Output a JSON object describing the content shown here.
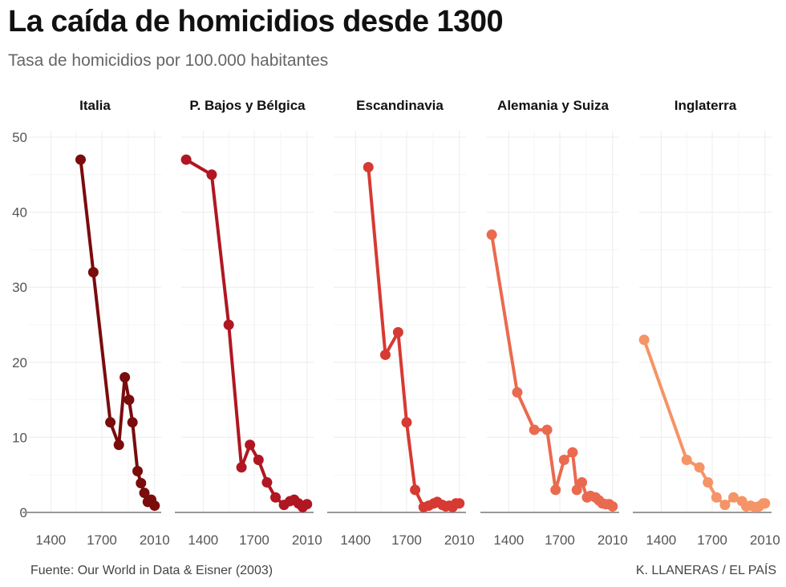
{
  "header": {
    "title": "La caída de homicidios desde 1300",
    "subtitle": "Tasa de homicidios por 100.000 habitantes"
  },
  "footer": {
    "source": "Fuente: Our World in Data & Eisner (2003)",
    "credit": "K. LLANERAS / EL PAÍS"
  },
  "chart_data": {
    "type": "line",
    "facets": true,
    "ylim": [
      0,
      50
    ],
    "yticks": [
      0,
      10,
      20,
      30,
      40,
      50
    ],
    "xlim": [
      1290,
      2030
    ],
    "xticks": [
      1400,
      1700,
      2010
    ],
    "grid": true,
    "legend": "none",
    "panels": [
      {
        "name": "Italia",
        "color": "#7a0c0c",
        "x": [
          1575,
          1650,
          1750,
          1800,
          1835,
          1860,
          1880,
          1910,
          1930,
          1950,
          1970,
          1990,
          2010
        ],
        "y": [
          47,
          32,
          12,
          9,
          18,
          15,
          12,
          5.5,
          3.9,
          2.6,
          1.4,
          1.7,
          0.9
        ]
      },
      {
        "name": "P. Bajos y Bélgica",
        "color": "#b01722",
        "x": [
          1300,
          1450,
          1550,
          1625,
          1675,
          1725,
          1775,
          1825,
          1875,
          1910,
          1935,
          1960,
          1985,
          2010
        ],
        "y": [
          47,
          45,
          25,
          6,
          9,
          7,
          4,
          2,
          1,
          1.5,
          1.7,
          1.2,
          0.7,
          1.1
        ]
      },
      {
        "name": "Escandinavia",
        "color": "#d63a32",
        "x": [
          1475,
          1575,
          1650,
          1700,
          1750,
          1800,
          1830,
          1860,
          1880,
          1910,
          1930,
          1950,
          1970,
          1990,
          2010
        ],
        "y": [
          46,
          21,
          24,
          12,
          3,
          0.7,
          0.9,
          1.2,
          1.4,
          1,
          0.8,
          0.9,
          0.7,
          1.2,
          1.2
        ]
      },
      {
        "name": "Alemania y Suiza",
        "color": "#ea6a4f",
        "x": [
          1300,
          1450,
          1550,
          1625,
          1675,
          1725,
          1775,
          1800,
          1830,
          1860,
          1880,
          1910,
          1930,
          1950,
          1970,
          1990,
          2010
        ],
        "y": [
          37,
          16,
          11,
          11,
          3,
          7,
          8,
          3,
          4,
          2,
          2.2,
          2,
          1.6,
          1.2,
          1.1,
          1.1,
          0.8
        ]
      },
      {
        "name": "Inglaterra",
        "color": "#f59466",
        "x": [
          1300,
          1550,
          1625,
          1675,
          1725,
          1775,
          1825,
          1875,
          1900,
          1925,
          1950,
          1975,
          2000,
          2010
        ],
        "y": [
          23,
          7,
          6,
          4,
          2,
          1,
          2,
          1.5,
          0.8,
          0.9,
          0.7,
          0.8,
          1.2,
          1.2
        ]
      }
    ]
  }
}
